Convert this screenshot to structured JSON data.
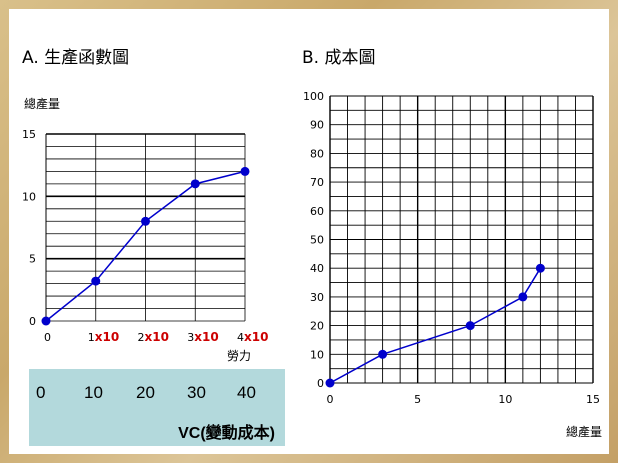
{
  "chart_data": [
    {
      "type": "line",
      "title": "A. 生產函數圖",
      "ylabel": "總產量",
      "xlabel": "勞力",
      "x": [
        0,
        1,
        2,
        3,
        4
      ],
      "y": [
        0,
        3.2,
        8,
        11,
        12
      ],
      "xlim": [
        0,
        4
      ],
      "ylim": [
        0,
        15
      ],
      "xticks": [
        "0",
        "1",
        "2",
        "3",
        "4"
      ],
      "xtick_suffix": "x10",
      "yticks": [
        "0",
        "5",
        "10",
        "15"
      ],
      "grid": true,
      "point_color": "#0000cc",
      "line_color": "#0000cc",
      "suffix_color": "#cc0000"
    },
    {
      "type": "line",
      "title": "B. 成本圖",
      "xlabel": "總產量",
      "ylabel": "",
      "x": [
        0,
        3,
        8,
        11,
        12
      ],
      "y": [
        0,
        10,
        20,
        30,
        40
      ],
      "xlim": [
        0,
        15
      ],
      "ylim": [
        0,
        100
      ],
      "xticks": [
        "0",
        "5",
        "10",
        "15"
      ],
      "yticks": [
        "0",
        "10",
        "20",
        "30",
        "40",
        "50",
        "60",
        "70",
        "80",
        "90",
        "100"
      ],
      "grid": true,
      "point_color": "#0000cc",
      "line_color": "#0000cc"
    }
  ],
  "vc_box": {
    "values": [
      "0",
      "10",
      "20",
      "30",
      "40"
    ],
    "label": "VC(變動成本)"
  }
}
